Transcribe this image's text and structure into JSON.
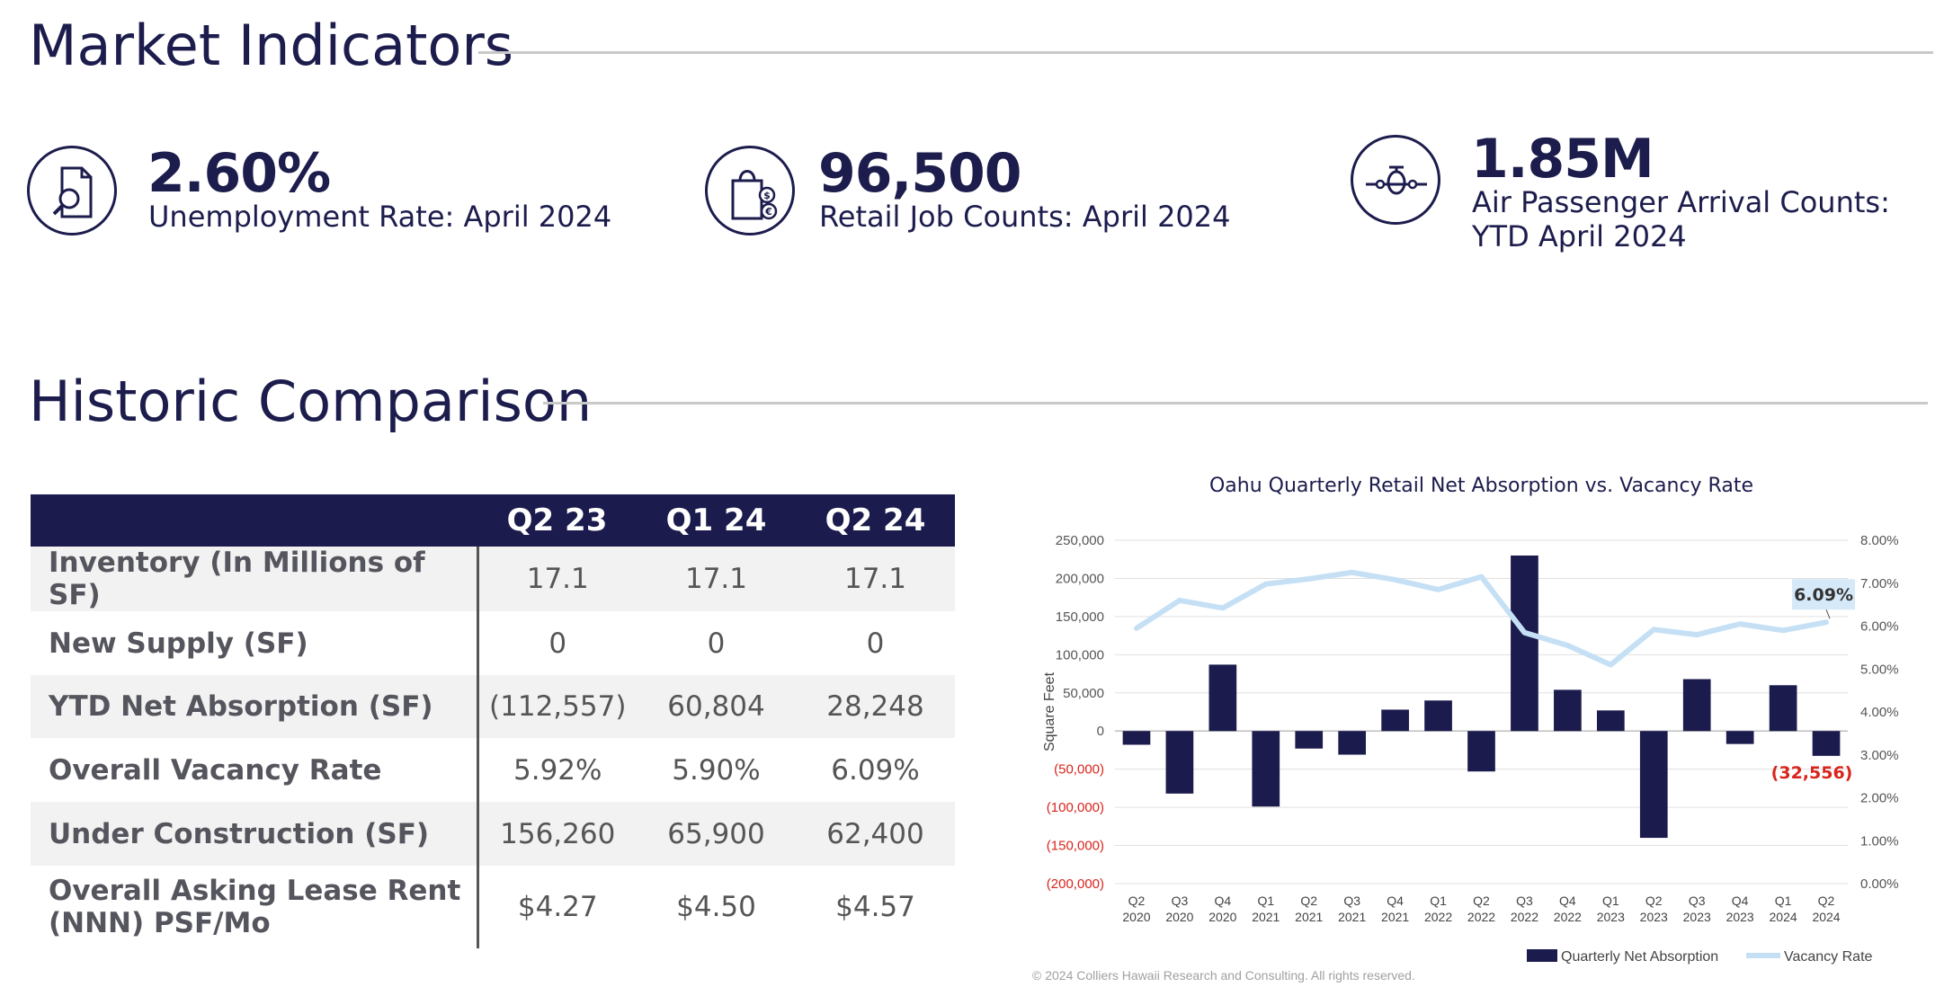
{
  "market_section": {
    "title": "Market Indicators"
  },
  "indicators": [
    {
      "value": "2.60%",
      "label_lines": [
        "Unemployment Rate: April 2024"
      ],
      "icon": "document-search-icon"
    },
    {
      "value": "96,500",
      "label_lines": [
        "Retail Job Counts: April 2024"
      ],
      "icon": "shopping-bag-icon"
    },
    {
      "value": "1.85M",
      "label_lines": [
        "Air Passenger Arrival Counts:",
        "YTD April 2024"
      ],
      "icon": "airplane-icon"
    }
  ],
  "historic_section": {
    "title": "Historic Comparison"
  },
  "table": {
    "columns": [
      "",
      "Q2 23",
      "Q1 24",
      "Q2 24"
    ],
    "rows": [
      {
        "label": "Inventory (In Millions of SF)",
        "values": [
          "17.1",
          "17.1",
          "17.1"
        ]
      },
      {
        "label": "New Supply (SF)",
        "values": [
          "0",
          "0",
          "0"
        ]
      },
      {
        "label": "YTD Net Absorption (SF)",
        "values": [
          "(112,557)",
          "60,804",
          "28,248"
        ]
      },
      {
        "label": "Overall Vacancy Rate",
        "values": [
          "5.92%",
          "5.90%",
          "6.09%"
        ]
      },
      {
        "label": "Under Construction (SF)",
        "values": [
          "156,260",
          "65,900",
          "62,400"
        ]
      },
      {
        "label": "Overall Asking Lease Rent (NNN) PSF/Mo",
        "values": [
          "$4.27",
          "$4.50",
          "$4.57"
        ]
      }
    ]
  },
  "chart_data": {
    "type": "bar",
    "title": "Oahu Quarterly Retail Net Absorption vs. Vacancy Rate",
    "ylabel": "Square Feet",
    "categories": [
      [
        "Q2",
        "2020"
      ],
      [
        "Q3",
        "2020"
      ],
      [
        "Q4",
        "2020"
      ],
      [
        "Q1",
        "2021"
      ],
      [
        "Q2",
        "2021"
      ],
      [
        "Q3",
        "2021"
      ],
      [
        "Q4",
        "2021"
      ],
      [
        "Q1",
        "2022"
      ],
      [
        "Q2",
        "2022"
      ],
      [
        "Q3",
        "2022"
      ],
      [
        "Q4",
        "2022"
      ],
      [
        "Q1",
        "2023"
      ],
      [
        "Q2",
        "2023"
      ],
      [
        "Q3",
        "2023"
      ],
      [
        "Q4",
        "2023"
      ],
      [
        "Q1",
        "2024"
      ],
      [
        "Q2",
        "2024"
      ]
    ],
    "series": [
      {
        "name": "Quarterly Net Absorption",
        "type": "bar",
        "axis": "left",
        "values": [
          -18000,
          -82000,
          87000,
          -99000,
          -23000,
          -31000,
          28000,
          40000,
          -53000,
          230000,
          54000,
          27000,
          -140000,
          68000,
          -17000,
          60000,
          -32556
        ]
      },
      {
        "name": "Vacancy Rate",
        "type": "line",
        "axis": "right",
        "values": [
          5.95,
          6.6,
          6.42,
          6.98,
          7.1,
          7.25,
          7.08,
          6.85,
          7.15,
          5.85,
          5.55,
          5.1,
          5.92,
          5.8,
          6.05,
          5.9,
          6.09
        ]
      }
    ],
    "left_axis": {
      "min": -200000,
      "max": 250000,
      "step": 50000,
      "tick_labels": [
        "(200,000)",
        "(150,000)",
        "(100,000)",
        "(50,000)",
        "0",
        "50,000",
        "100,000",
        "150,000",
        "200,000",
        "250,000"
      ]
    },
    "right_axis": {
      "min": 0,
      "max": 8,
      "step": 1,
      "tick_labels": [
        "0.00%",
        "1.00%",
        "2.00%",
        "3.00%",
        "4.00%",
        "5.00%",
        "6.00%",
        "7.00%",
        "8.00%"
      ]
    },
    "annotations": [
      {
        "series": "Vacancy Rate",
        "index": 16,
        "text": "6.09%"
      },
      {
        "series": "Quarterly Net Absorption",
        "index": 16,
        "text": "(32,556)"
      }
    ],
    "legend_position": "bottom-right",
    "grid": true,
    "colors": {
      "bar": "#1b1b4d",
      "line": "#c5e0f5",
      "negative_label": "#d9241c"
    }
  },
  "footer": {
    "copyright": "© 2024 Colliers Hawaii Research and Consulting. All rights reserved."
  }
}
